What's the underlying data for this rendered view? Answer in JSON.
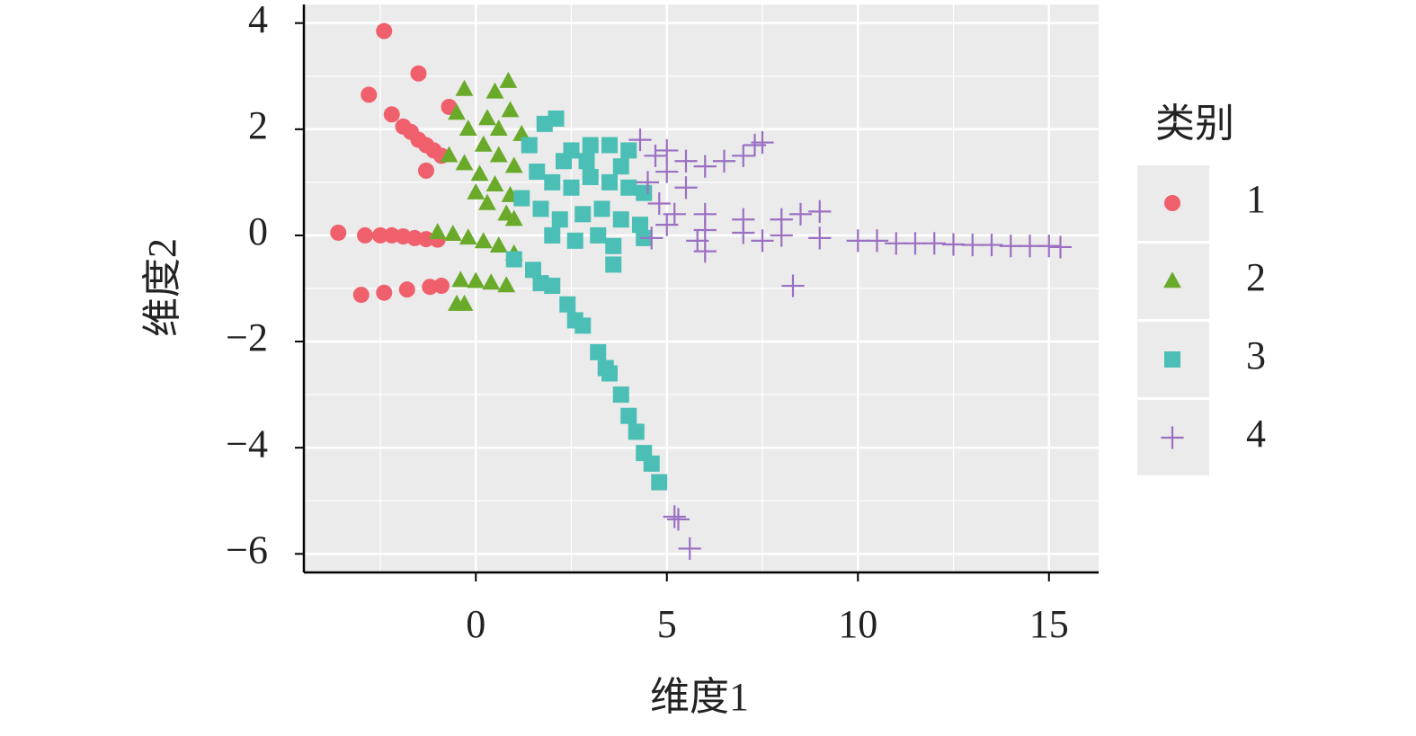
{
  "chart_data": {
    "type": "scatter",
    "xlabel": "维度1",
    "ylabel": "维度2",
    "legend_title": "类别",
    "legend": "right",
    "grid": true,
    "xlim": [
      -4.5,
      16.3
    ],
    "ylim": [
      -6.35,
      4.35
    ],
    "xticks": [
      0,
      5,
      10,
      15
    ],
    "yticks": [
      {
        "value": -6,
        "label": "−6"
      },
      {
        "value": -4,
        "label": "−4"
      },
      {
        "value": -2,
        "label": "−2"
      },
      0,
      2,
      4
    ],
    "series": [
      {
        "name": "1",
        "color": "#ef5f6c",
        "marker": "circle",
        "x": [
          -2.4,
          -1.5,
          -2.8,
          -2.2,
          -0.7,
          -1.3,
          -1.9,
          -1.7,
          -1.5,
          -1.3,
          -1.1,
          -0.9,
          -3.6,
          -2.9,
          -2.5,
          -2.2,
          -1.9,
          -1.6,
          -1.3,
          -1.0,
          -3.0,
          -2.4,
          -1.8,
          -1.2,
          -0.9
        ],
        "values": [
          3.85,
          3.05,
          2.65,
          2.28,
          2.42,
          1.22,
          2.05,
          1.95,
          1.8,
          1.7,
          1.6,
          1.5,
          0.05,
          0.0,
          0.0,
          0.0,
          -0.02,
          -0.05,
          -0.07,
          -0.08,
          -1.12,
          -1.08,
          -1.02,
          -0.97,
          -0.95
        ]
      },
      {
        "name": "2",
        "color": "#6aaa2a",
        "marker": "triangle",
        "x": [
          -0.3,
          0.5,
          0.85,
          -0.5,
          0.3,
          0.9,
          0.6,
          1.2,
          -0.2,
          0.2,
          0.6,
          1.0,
          -0.7,
          -0.3,
          0.1,
          0.5,
          0.9,
          0.0,
          0.3,
          0.8,
          1.0,
          -0.2,
          0.2,
          0.6,
          1.0,
          -0.4,
          0.0,
          0.4,
          0.8,
          -0.5,
          -0.3,
          -1.0,
          -0.6
        ],
        "values": [
          2.75,
          2.7,
          2.9,
          2.3,
          2.2,
          2.35,
          2.0,
          1.9,
          2.0,
          1.7,
          1.5,
          1.3,
          1.5,
          1.35,
          1.15,
          0.95,
          0.75,
          0.8,
          0.6,
          0.4,
          0.3,
          -0.05,
          -0.12,
          -0.2,
          -0.35,
          -0.85,
          -0.87,
          -0.9,
          -0.95,
          -1.3,
          -1.3,
          0.05,
          0.02
        ]
      },
      {
        "name": "3",
        "color": "#4bbfb5",
        "marker": "square",
        "x": [
          1.8,
          2.1,
          2.5,
          3.0,
          3.5,
          4.0,
          1.6,
          2.0,
          2.5,
          3.0,
          3.5,
          4.0,
          4.4,
          1.7,
          2.2,
          2.8,
          3.3,
          3.8,
          4.3,
          2.0,
          2.6,
          3.2,
          3.6,
          4.4,
          3.6,
          2.9,
          2.3,
          3.8,
          1.2,
          1.4,
          1.0,
          1.5,
          2.0,
          2.4,
          2.8,
          3.2,
          3.5,
          3.8,
          4.0,
          4.2,
          4.4,
          4.6,
          4.8,
          1.7,
          2.6,
          3.4
        ],
        "values": [
          2.1,
          2.2,
          1.6,
          1.7,
          1.7,
          1.6,
          1.2,
          1.0,
          0.9,
          1.1,
          1.0,
          0.9,
          0.8,
          0.5,
          0.3,
          0.4,
          0.5,
          0.3,
          0.2,
          0.0,
          -0.1,
          0.0,
          -0.2,
          -0.05,
          -0.55,
          1.4,
          1.4,
          1.3,
          0.7,
          1.7,
          -0.45,
          -0.65,
          -0.95,
          -1.3,
          -1.7,
          -2.2,
          -2.6,
          -3.0,
          -3.4,
          -3.7,
          -4.1,
          -4.3,
          -4.65,
          -0.9,
          -1.6,
          -2.5
        ]
      },
      {
        "name": "4",
        "color": "#9b6fc2",
        "marker": "plus",
        "x": [
          4.3,
          4.7,
          5.0,
          5.5,
          6.0,
          6.5,
          7.0,
          7.3,
          7.5,
          4.5,
          5.0,
          5.5,
          4.8,
          5.2,
          6.0,
          7.0,
          8.0,
          8.5,
          9.0,
          5.0,
          6.0,
          7.0,
          8.0,
          9.0,
          10.0,
          10.5,
          11.0,
          11.5,
          12.0,
          12.5,
          13.0,
          13.5,
          14.0,
          14.5,
          15.0,
          15.3,
          6.0,
          8.3,
          5.2,
          5.3,
          5.6,
          4.6,
          5.8,
          7.5
        ],
        "values": [
          1.8,
          1.5,
          1.6,
          1.4,
          1.3,
          1.4,
          1.5,
          1.7,
          1.75,
          1.0,
          1.2,
          0.9,
          0.6,
          0.4,
          0.4,
          0.3,
          0.3,
          0.4,
          0.45,
          0.2,
          0.1,
          0.05,
          0.0,
          -0.05,
          -0.1,
          -0.1,
          -0.15,
          -0.15,
          -0.15,
          -0.17,
          -0.18,
          -0.18,
          -0.2,
          -0.2,
          -0.2,
          -0.22,
          -0.3,
          -0.95,
          -5.3,
          -5.35,
          -5.9,
          -0.05,
          -0.1,
          -0.1
        ]
      }
    ]
  }
}
